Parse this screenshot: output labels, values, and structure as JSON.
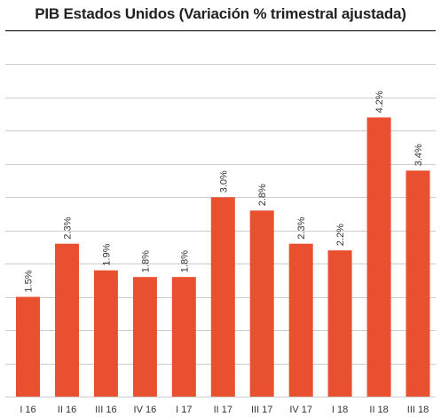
{
  "chart_data": {
    "type": "bar",
    "title": "PIB Estados Unidos (Variación % trimestral ajustada)",
    "categories": [
      "I 16",
      "II 16",
      "III 16",
      "IV 16",
      "I 17",
      "II 17",
      "III 17",
      "IV 17",
      "I 18",
      "II 18",
      "III 18"
    ],
    "values": [
      1.5,
      2.3,
      1.9,
      1.8,
      1.8,
      3.0,
      2.8,
      2.3,
      2.2,
      4.2,
      3.4
    ],
    "data_labels": [
      "1.5%",
      "2.3%",
      "1.9%",
      "1.8%",
      "1.8%",
      "3.0%",
      "2.8%",
      "2.3%",
      "2.2%",
      "4.2%",
      "3.4%"
    ],
    "ylim": [
      0,
      5.5
    ],
    "grid_step": 0.5,
    "grid": true,
    "bar_color": "#e8502f",
    "grid_color": "#cccccc",
    "xlabel": "",
    "ylabel": ""
  }
}
